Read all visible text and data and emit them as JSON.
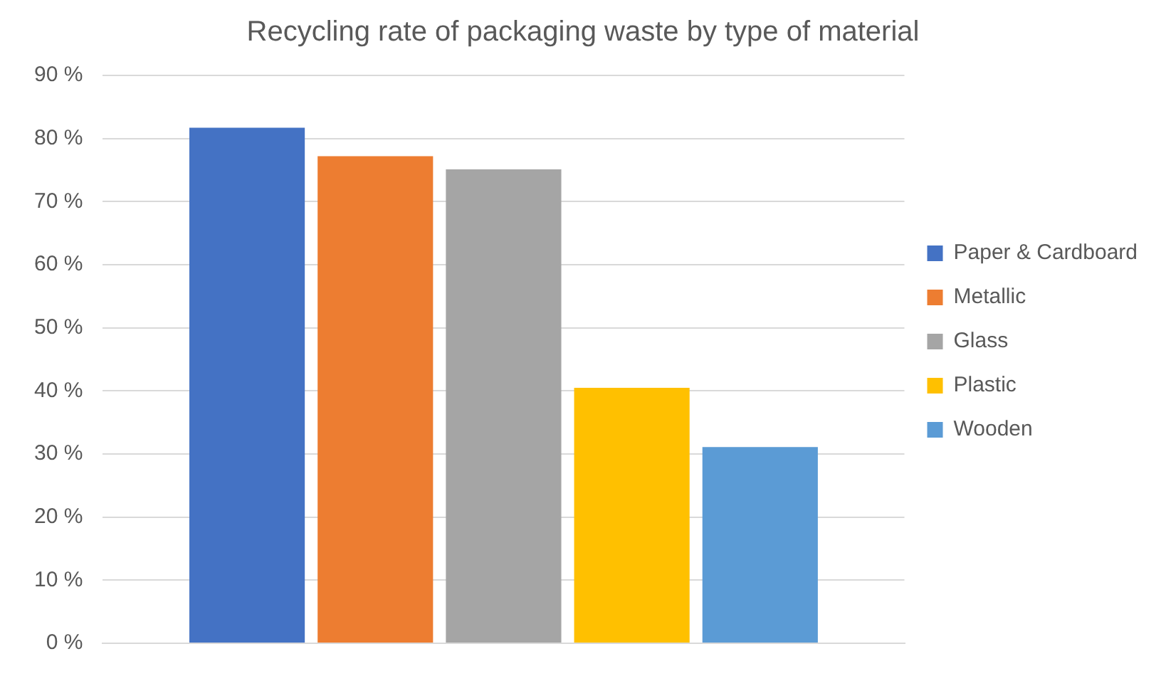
{
  "chart_data": {
    "type": "bar",
    "title": "Recycling rate of packaging waste by type of material",
    "categories": [
      null
    ],
    "series": [
      {
        "name": "Paper & Cardboard",
        "color": "#4472c4",
        "values": [
          81.7
        ]
      },
      {
        "name": "Metallic",
        "color": "#ed7d31",
        "values": [
          77.2
        ]
      },
      {
        "name": "Glass",
        "color": "#a5a5a5",
        "values": [
          75.1
        ]
      },
      {
        "name": "Plastic",
        "color": "#ffc000",
        "values": [
          40.5
        ]
      },
      {
        "name": "Wooden",
        "color": "#5b9bd5",
        "values": [
          31.1
        ]
      }
    ],
    "ylim": [
      0,
      90
    ],
    "yticks": [
      {
        "value": 0,
        "label": "0 %"
      },
      {
        "value": 10,
        "label": "10 %"
      },
      {
        "value": 20,
        "label": "20 %"
      },
      {
        "value": 30,
        "label": "30 %"
      },
      {
        "value": 40,
        "label": "40 %"
      },
      {
        "value": 50,
        "label": "50 %"
      },
      {
        "value": 60,
        "label": "60 %"
      },
      {
        "value": 70,
        "label": "70 %"
      },
      {
        "value": 80,
        "label": "80 %"
      },
      {
        "value": 90,
        "label": "90 %"
      }
    ],
    "grid": "y",
    "legend": "right"
  }
}
